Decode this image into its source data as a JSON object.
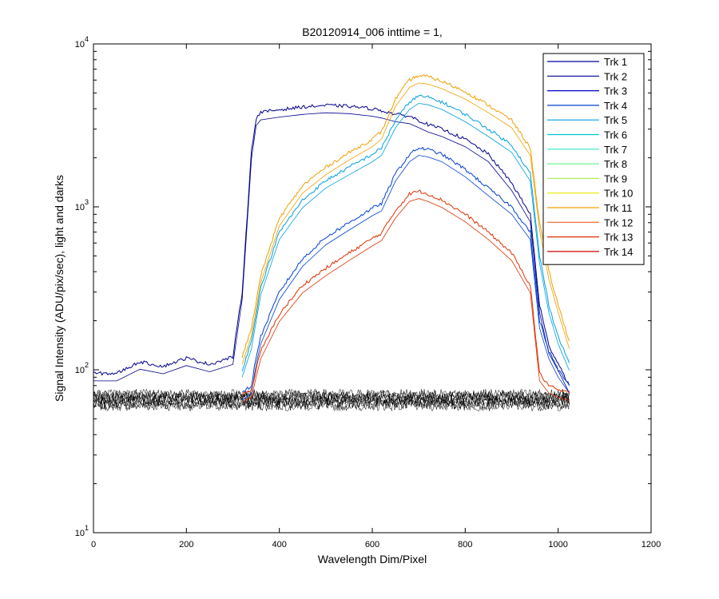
{
  "chart_data": {
    "type": "line",
    "title": "B20120914_006 inttime = 1,",
    "xlabel": "Wavelength Dim/Pixel",
    "ylabel": "Signal Intensity (ADU/pix/sec), light and darks",
    "xlim": [
      0,
      1200
    ],
    "ylim": [
      10,
      10000
    ],
    "yscale": "log",
    "grid": false,
    "legend_position": "top-right",
    "x_ticks": [
      "0",
      "200",
      "400",
      "600",
      "800",
      "1000",
      "1200"
    ],
    "y_ticks": [
      {
        "base": "10",
        "exp": "1"
      },
      {
        "base": "10",
        "exp": "2"
      },
      {
        "base": "10",
        "exp": "3"
      },
      {
        "base": "10",
        "exp": "4"
      }
    ],
    "x": [
      0,
      40,
      50,
      100,
      150,
      200,
      250,
      300,
      320,
      340,
      350,
      360,
      400,
      450,
      500,
      550,
      600,
      620,
      650,
      680,
      700,
      720,
      750,
      800,
      850,
      900,
      940,
      960,
      980,
      1000,
      1024
    ],
    "series": [
      {
        "name": "Trk 1",
        "color": "#0000a6",
        "values": [
          null,
          null,
          null,
          null,
          null,
          null,
          null,
          null,
          null,
          null,
          null,
          null,
          null,
          null,
          null,
          null,
          null,
          null,
          null,
          null,
          null,
          null,
          null,
          null,
          null,
          null,
          null,
          null,
          null,
          null,
          null
        ]
      },
      {
        "name": "Trk 2",
        "color": "#000090",
        "values": [
          95,
          95,
          95,
          112,
          105,
          118,
          108,
          120,
          300,
          2200,
          3500,
          3800,
          3950,
          4100,
          4200,
          4150,
          4000,
          3900,
          3700,
          3600,
          3400,
          3200,
          3000,
          2600,
          2100,
          1400,
          900,
          250,
          140,
          110,
          80
        ]
      },
      {
        "name": "Trk 3",
        "color": "#0000c8",
        "values": [
          null,
          null,
          null,
          null,
          null,
          null,
          null,
          null,
          null,
          null,
          null,
          null,
          null,
          null,
          null,
          null,
          null,
          null,
          null,
          null,
          null,
          null,
          null,
          null,
          null,
          null,
          null,
          null,
          null,
          null,
          null
        ]
      },
      {
        "name": "Trk 4",
        "color": "#0040d0",
        "values": [
          null,
          null,
          null,
          null,
          null,
          null,
          null,
          null,
          72,
          80,
          120,
          160,
          300,
          480,
          650,
          800,
          980,
          1050,
          1600,
          2100,
          2300,
          2250,
          2100,
          1700,
          1300,
          1000,
          700,
          200,
          130,
          100,
          80
        ]
      },
      {
        "name": "Trk 5",
        "color": "#00a0e0",
        "values": [
          null,
          null,
          null,
          null,
          null,
          null,
          null,
          null,
          100,
          150,
          220,
          320,
          700,
          1100,
          1450,
          1750,
          2100,
          2300,
          3400,
          4400,
          4800,
          4700,
          4400,
          3700,
          3000,
          2400,
          1600,
          500,
          250,
          160,
          110
        ]
      },
      {
        "name": "Trk 6",
        "color": "#00c8d0",
        "values": [
          null,
          null,
          null,
          null,
          null,
          null,
          null,
          null,
          null,
          null,
          null,
          null,
          null,
          null,
          null,
          null,
          null,
          null,
          null,
          null,
          null,
          null,
          null,
          null,
          null,
          null,
          null,
          null,
          null,
          null,
          null
        ]
      },
      {
        "name": "Trk 7",
        "color": "#30e8c0",
        "values": [
          null,
          null,
          null,
          null,
          null,
          null,
          null,
          null,
          null,
          null,
          null,
          null,
          null,
          null,
          null,
          null,
          null,
          null,
          null,
          null,
          null,
          null,
          null,
          null,
          null,
          null,
          null,
          null,
          null,
          null,
          null
        ]
      },
      {
        "name": "Trk 8",
        "color": "#70f090",
        "values": [
          null,
          null,
          null,
          null,
          null,
          null,
          null,
          null,
          null,
          null,
          null,
          null,
          null,
          null,
          null,
          null,
          null,
          null,
          null,
          null,
          null,
          null,
          null,
          null,
          null,
          null,
          null,
          null,
          null,
          null,
          null
        ]
      },
      {
        "name": "Trk 9",
        "color": "#b0f060",
        "values": [
          null,
          null,
          null,
          null,
          null,
          null,
          null,
          null,
          null,
          null,
          null,
          null,
          null,
          null,
          null,
          null,
          null,
          null,
          null,
          null,
          null,
          null,
          null,
          null,
          null,
          null,
          null,
          null,
          null,
          null,
          null
        ]
      },
      {
        "name": "Trk 10",
        "color": "#e8e800",
        "values": [
          null,
          null,
          null,
          null,
          null,
          null,
          null,
          null,
          null,
          null,
          null,
          null,
          null,
          null,
          null,
          null,
          null,
          null,
          null,
          null,
          null,
          null,
          null,
          null,
          null,
          null,
          null,
          null,
          null,
          null,
          null
        ]
      },
      {
        "name": "Trk 11",
        "color": "#f0a000",
        "values": [
          null,
          null,
          null,
          null,
          null,
          null,
          null,
          null,
          120,
          180,
          260,
          380,
          850,
          1350,
          1750,
          2150,
          2600,
          2900,
          4600,
          6000,
          6400,
          6300,
          5900,
          5100,
          4200,
          3400,
          2300,
          800,
          400,
          250,
          150
        ]
      },
      {
        "name": "Trk 12",
        "color": "#f06020",
        "values": [
          null,
          null,
          null,
          null,
          null,
          null,
          null,
          null,
          null,
          null,
          null,
          null,
          null,
          null,
          null,
          null,
          null,
          null,
          null,
          null,
          null,
          null,
          null,
          null,
          null,
          null,
          null,
          null,
          null,
          null,
          null
        ]
      },
      {
        "name": "Trk 13",
        "color": "#e03000",
        "values": [
          null,
          null,
          null,
          null,
          null,
          null,
          null,
          null,
          71,
          75,
          100,
          130,
          220,
          330,
          420,
          520,
          640,
          690,
          950,
          1200,
          1250,
          1200,
          1100,
          900,
          700,
          520,
          330,
          95,
          80,
          75,
          72
        ]
      },
      {
        "name": "Trk 14",
        "color": "#d00000",
        "values": [
          null,
          null,
          null,
          null,
          null,
          null,
          null,
          null,
          null,
          null,
          null,
          null,
          null,
          null,
          null,
          null,
          null,
          null,
          null,
          null,
          null,
          null,
          null,
          null,
          null,
          null,
          null,
          null,
          null,
          null,
          null
        ]
      }
    ]
  }
}
